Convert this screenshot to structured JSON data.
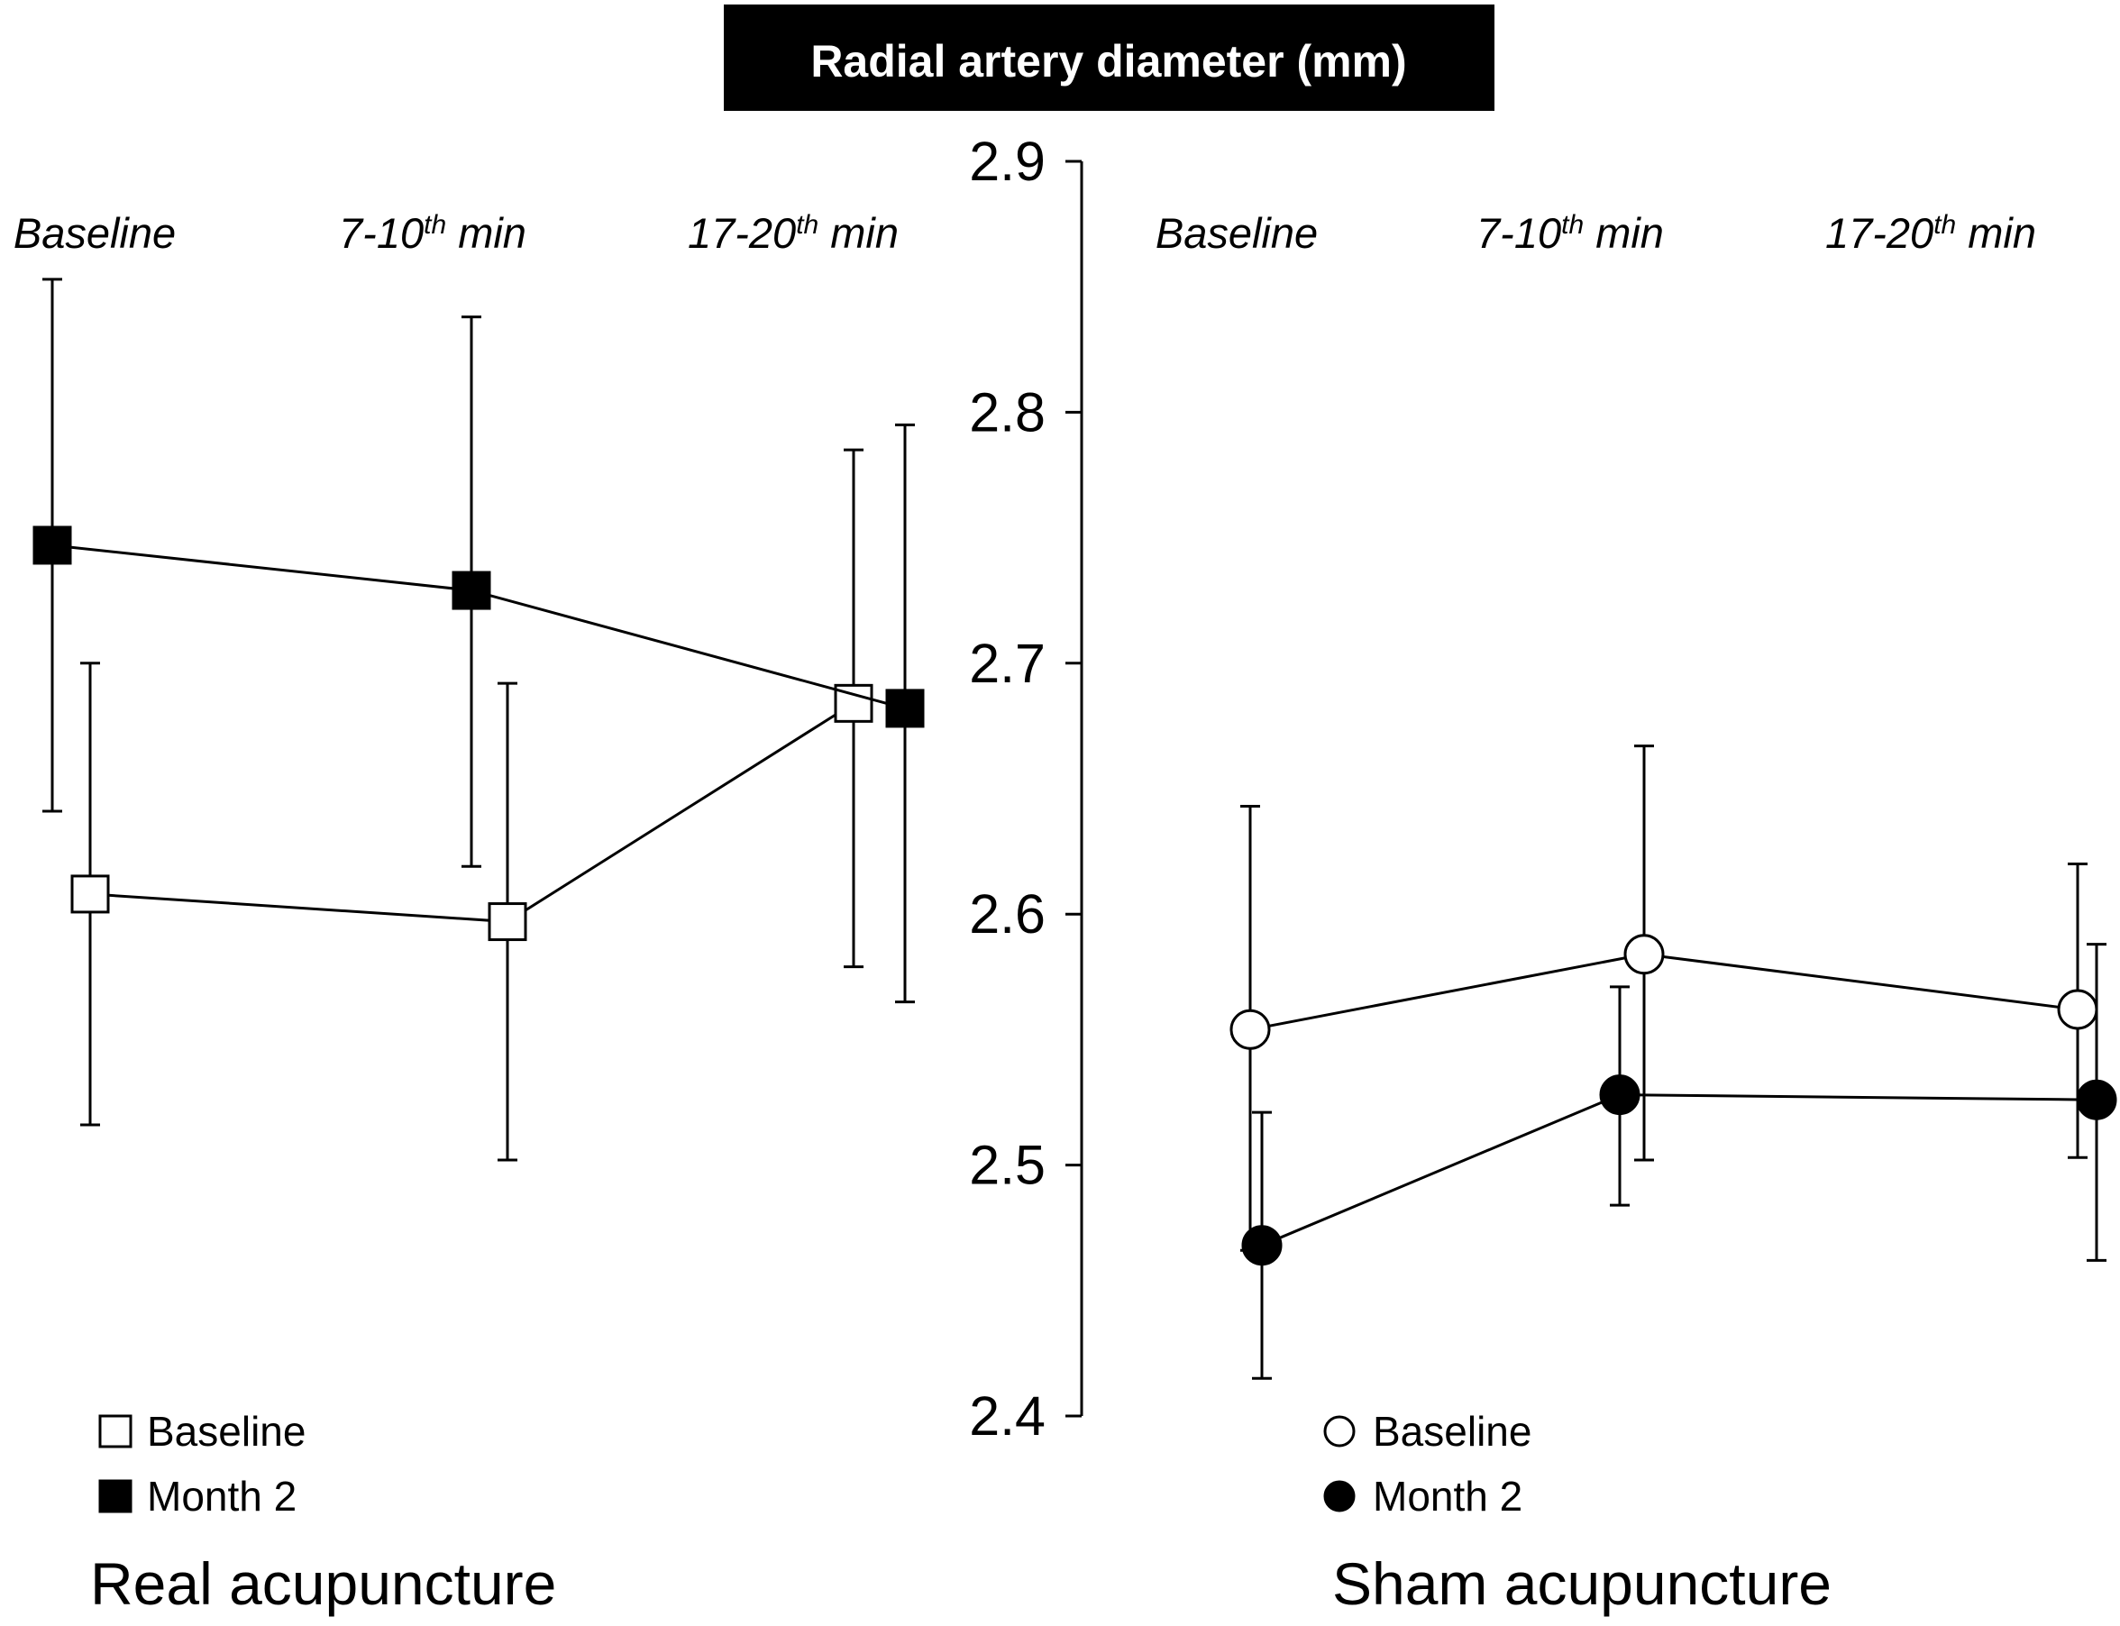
{
  "chart_data": {
    "type": "line",
    "title": "Radial artery diameter (mm)",
    "y_axis": {
      "ylim": [
        2.4,
        2.9
      ],
      "ticks": [
        "2.4",
        "2.5",
        "2.6",
        "2.7",
        "2.8",
        "2.9"
      ]
    },
    "timepoint_labels": [
      {
        "base": "Baseline",
        "sup": "",
        "suffix": ""
      },
      {
        "base": "7-10",
        "sup": "th",
        "suffix": " min"
      },
      {
        "base": "17-20",
        "sup": "th",
        "suffix": " min"
      }
    ],
    "panels": [
      {
        "title": "Real acupuncture",
        "marker": "square",
        "series": [
          {
            "name": "Baseline",
            "fill": "#ffffff",
            "values": [
              2.608,
              2.597,
              2.684
            ],
            "err_low": [
              2.516,
              2.502,
              2.579
            ],
            "err_high": [
              2.7,
              2.692,
              2.785
            ]
          },
          {
            "name": "Month 2",
            "fill": "#000000",
            "values": [
              2.747,
              2.729,
              2.682
            ],
            "err_low": [
              2.641,
              2.619,
              2.565
            ],
            "err_high": [
              2.853,
              2.838,
              2.795
            ]
          }
        ]
      },
      {
        "title": "Sham acupuncture",
        "marker": "circle",
        "series": [
          {
            "name": "Baseline",
            "fill": "#ffffff",
            "values": [
              2.554,
              2.584,
              2.562
            ],
            "err_low": [
              2.466,
              2.502,
              2.503
            ],
            "err_high": [
              2.643,
              2.667,
              2.62
            ]
          },
          {
            "name": "Month 2",
            "fill": "#000000",
            "values": [
              2.468,
              2.528,
              2.526
            ],
            "err_low": [
              2.415,
              2.484,
              2.462
            ],
            "err_high": [
              2.521,
              2.571,
              2.588
            ]
          }
        ]
      }
    ]
  }
}
